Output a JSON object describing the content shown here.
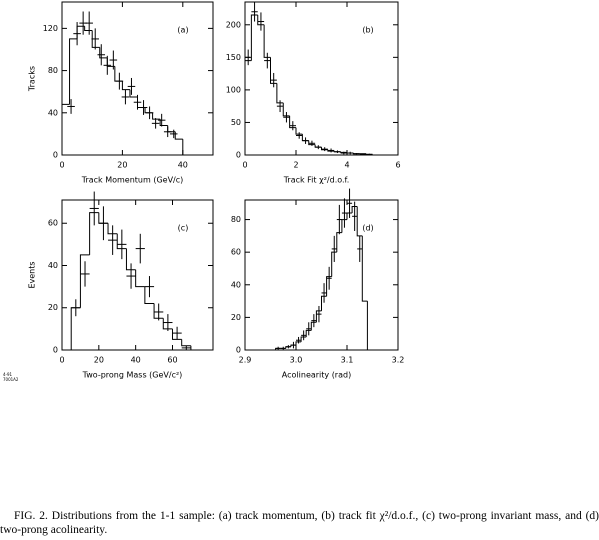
{
  "chart_data": [
    {
      "type": "histogram",
      "panel_label": "(a)",
      "xlabel": "Track Momentum   (GeV/c)",
      "ylabel": "Tracks",
      "xlim": [
        0,
        50
      ],
      "ylim": [
        0,
        145
      ],
      "xticks": [
        0,
        20,
        40
      ],
      "yticks": [
        0,
        40,
        80,
        120
      ],
      "bins": [
        0,
        2.5,
        5,
        7.5,
        10,
        12.5,
        15,
        17.5,
        20,
        22.5,
        25,
        27.5,
        30,
        32.5,
        35,
        37.5,
        40
      ],
      "counts": [
        48,
        110,
        122,
        118,
        102,
        92,
        84,
        70,
        62,
        55,
        45,
        40,
        34,
        28,
        22,
        15
      ],
      "points": {
        "x": [
          3,
          5,
          7,
          9,
          11,
          13,
          15,
          17,
          19,
          21,
          23,
          25,
          27,
          29,
          31,
          33,
          35,
          37
        ],
        "values": [
          46,
          115,
          125,
          125,
          110,
          95,
          85,
          90,
          70,
          55,
          65,
          50,
          45,
          40,
          30,
          33,
          22,
          20
        ],
        "errors": [
          7,
          11,
          11,
          11,
          10,
          10,
          9,
          9,
          8,
          7,
          8,
          7,
          7,
          6,
          5,
          6,
          5,
          4
        ]
      }
    },
    {
      "type": "histogram",
      "panel_label": "(b)",
      "xlabel": "Track Fit χ²/d.o.f.",
      "ylabel": null,
      "xlim": [
        0,
        6
      ],
      "ylim": [
        0,
        235
      ],
      "xticks": [
        0,
        2,
        4,
        6
      ],
      "yticks": [
        0,
        50,
        100,
        150,
        200
      ],
      "bins": [
        0,
        0.25,
        0.5,
        0.75,
        1,
        1.25,
        1.5,
        1.75,
        2,
        2.25,
        2.5,
        2.75,
        3,
        3.25,
        3.5,
        3.75,
        4,
        4.25,
        4.5,
        4.75,
        5
      ],
      "counts": [
        145,
        215,
        200,
        150,
        110,
        80,
        60,
        42,
        32,
        22,
        16,
        12,
        8,
        6,
        5,
        4,
        3,
        2,
        2,
        1
      ],
      "points": {
        "x": [
          0.125,
          0.375,
          0.625,
          0.875,
          1.125,
          1.375,
          1.625,
          1.875,
          2.125,
          2.375,
          2.625,
          2.875,
          3.125,
          3.375,
          3.625,
          3.875,
          4.125,
          4.375,
          4.625,
          4.875
        ],
        "values": [
          150,
          220,
          205,
          145,
          115,
          75,
          58,
          45,
          30,
          22,
          18,
          12,
          9,
          7,
          5,
          3,
          3,
          2,
          1,
          1
        ],
        "errors": [
          12,
          15,
          14,
          12,
          11,
          9,
          8,
          7,
          5,
          5,
          4,
          3,
          3,
          3,
          2,
          2,
          2,
          1,
          1,
          1
        ]
      }
    },
    {
      "type": "histogram",
      "panel_label": "(c)",
      "xlabel": "Two-prong Mass   (GeV/c²)",
      "ylabel": "Events",
      "xlim": [
        0,
        82
      ],
      "ylim": [
        0,
        71
      ],
      "xticks": [
        0,
        20,
        40,
        60
      ],
      "yticks": [
        0,
        20,
        40,
        60
      ],
      "bins": [
        0,
        5,
        10,
        15,
        20,
        25,
        30,
        35,
        40,
        45,
        50,
        55,
        60,
        65,
        70
      ],
      "counts": [
        0,
        20,
        45,
        65,
        60,
        55,
        48,
        38,
        30,
        22,
        15,
        10,
        5,
        2
      ],
      "points": {
        "x": [
          7.5,
          12.5,
          17.5,
          22.5,
          27.5,
          32.5,
          37.5,
          42.5,
          47.5,
          52.5,
          57.5,
          62.5,
          67.5
        ],
        "values": [
          20,
          36,
          67,
          60,
          52,
          50,
          35,
          48,
          30,
          18,
          13,
          8,
          1
        ],
        "errors": [
          4,
          6,
          8,
          8,
          7,
          7,
          6,
          7,
          5,
          4,
          4,
          3,
          1
        ]
      }
    },
    {
      "type": "histogram",
      "panel_label": "(d)",
      "xlabel": "Acolinearity   (rad)",
      "ylabel": null,
      "xlim": [
        2.9,
        3.2
      ],
      "ylim": [
        0,
        92
      ],
      "xticks": [
        2.9,
        {
          "value": 3,
          "label": "3.0"
        },
        3.1,
        3.2
      ],
      "yticks": [
        0,
        20,
        40,
        60,
        80
      ],
      "bins": [
        2.96,
        2.97,
        2.98,
        2.99,
        3,
        3.01,
        3.02,
        3.03,
        3.04,
        3.05,
        3.06,
        3.07,
        3.08,
        3.09,
        3.1,
        3.11,
        3.12,
        3.13,
        3.14
      ],
      "counts": [
        1,
        1,
        2,
        3,
        5,
        8,
        12,
        17,
        24,
        33,
        45,
        60,
        72,
        80,
        84,
        88,
        70,
        30
      ],
      "points": {
        "x": [
          2.965,
          2.975,
          2.985,
          2.995,
          3.005,
          3.015,
          3.025,
          3.035,
          3.045,
          3.055,
          3.065,
          3.075,
          3.085,
          3.095,
          3.105,
          3.115,
          3.125
        ],
        "values": [
          1,
          1,
          2,
          3,
          6,
          9,
          13,
          18,
          22,
          35,
          44,
          62,
          80,
          84,
          90,
          82,
          62
        ],
        "errors": [
          1,
          1,
          1,
          2,
          2,
          3,
          4,
          4,
          5,
          6,
          7,
          8,
          9,
          9,
          9,
          9,
          8
        ]
      }
    }
  ],
  "side_note": [
    "4-91",
    "7001A2"
  ],
  "caption": "FIG. 2. Distributions from the 1-1 sample: (a) track momentum, (b) track fit χ²/d.o.f., (c) two-prong invariant mass, and (d) two-prong acolinearity."
}
